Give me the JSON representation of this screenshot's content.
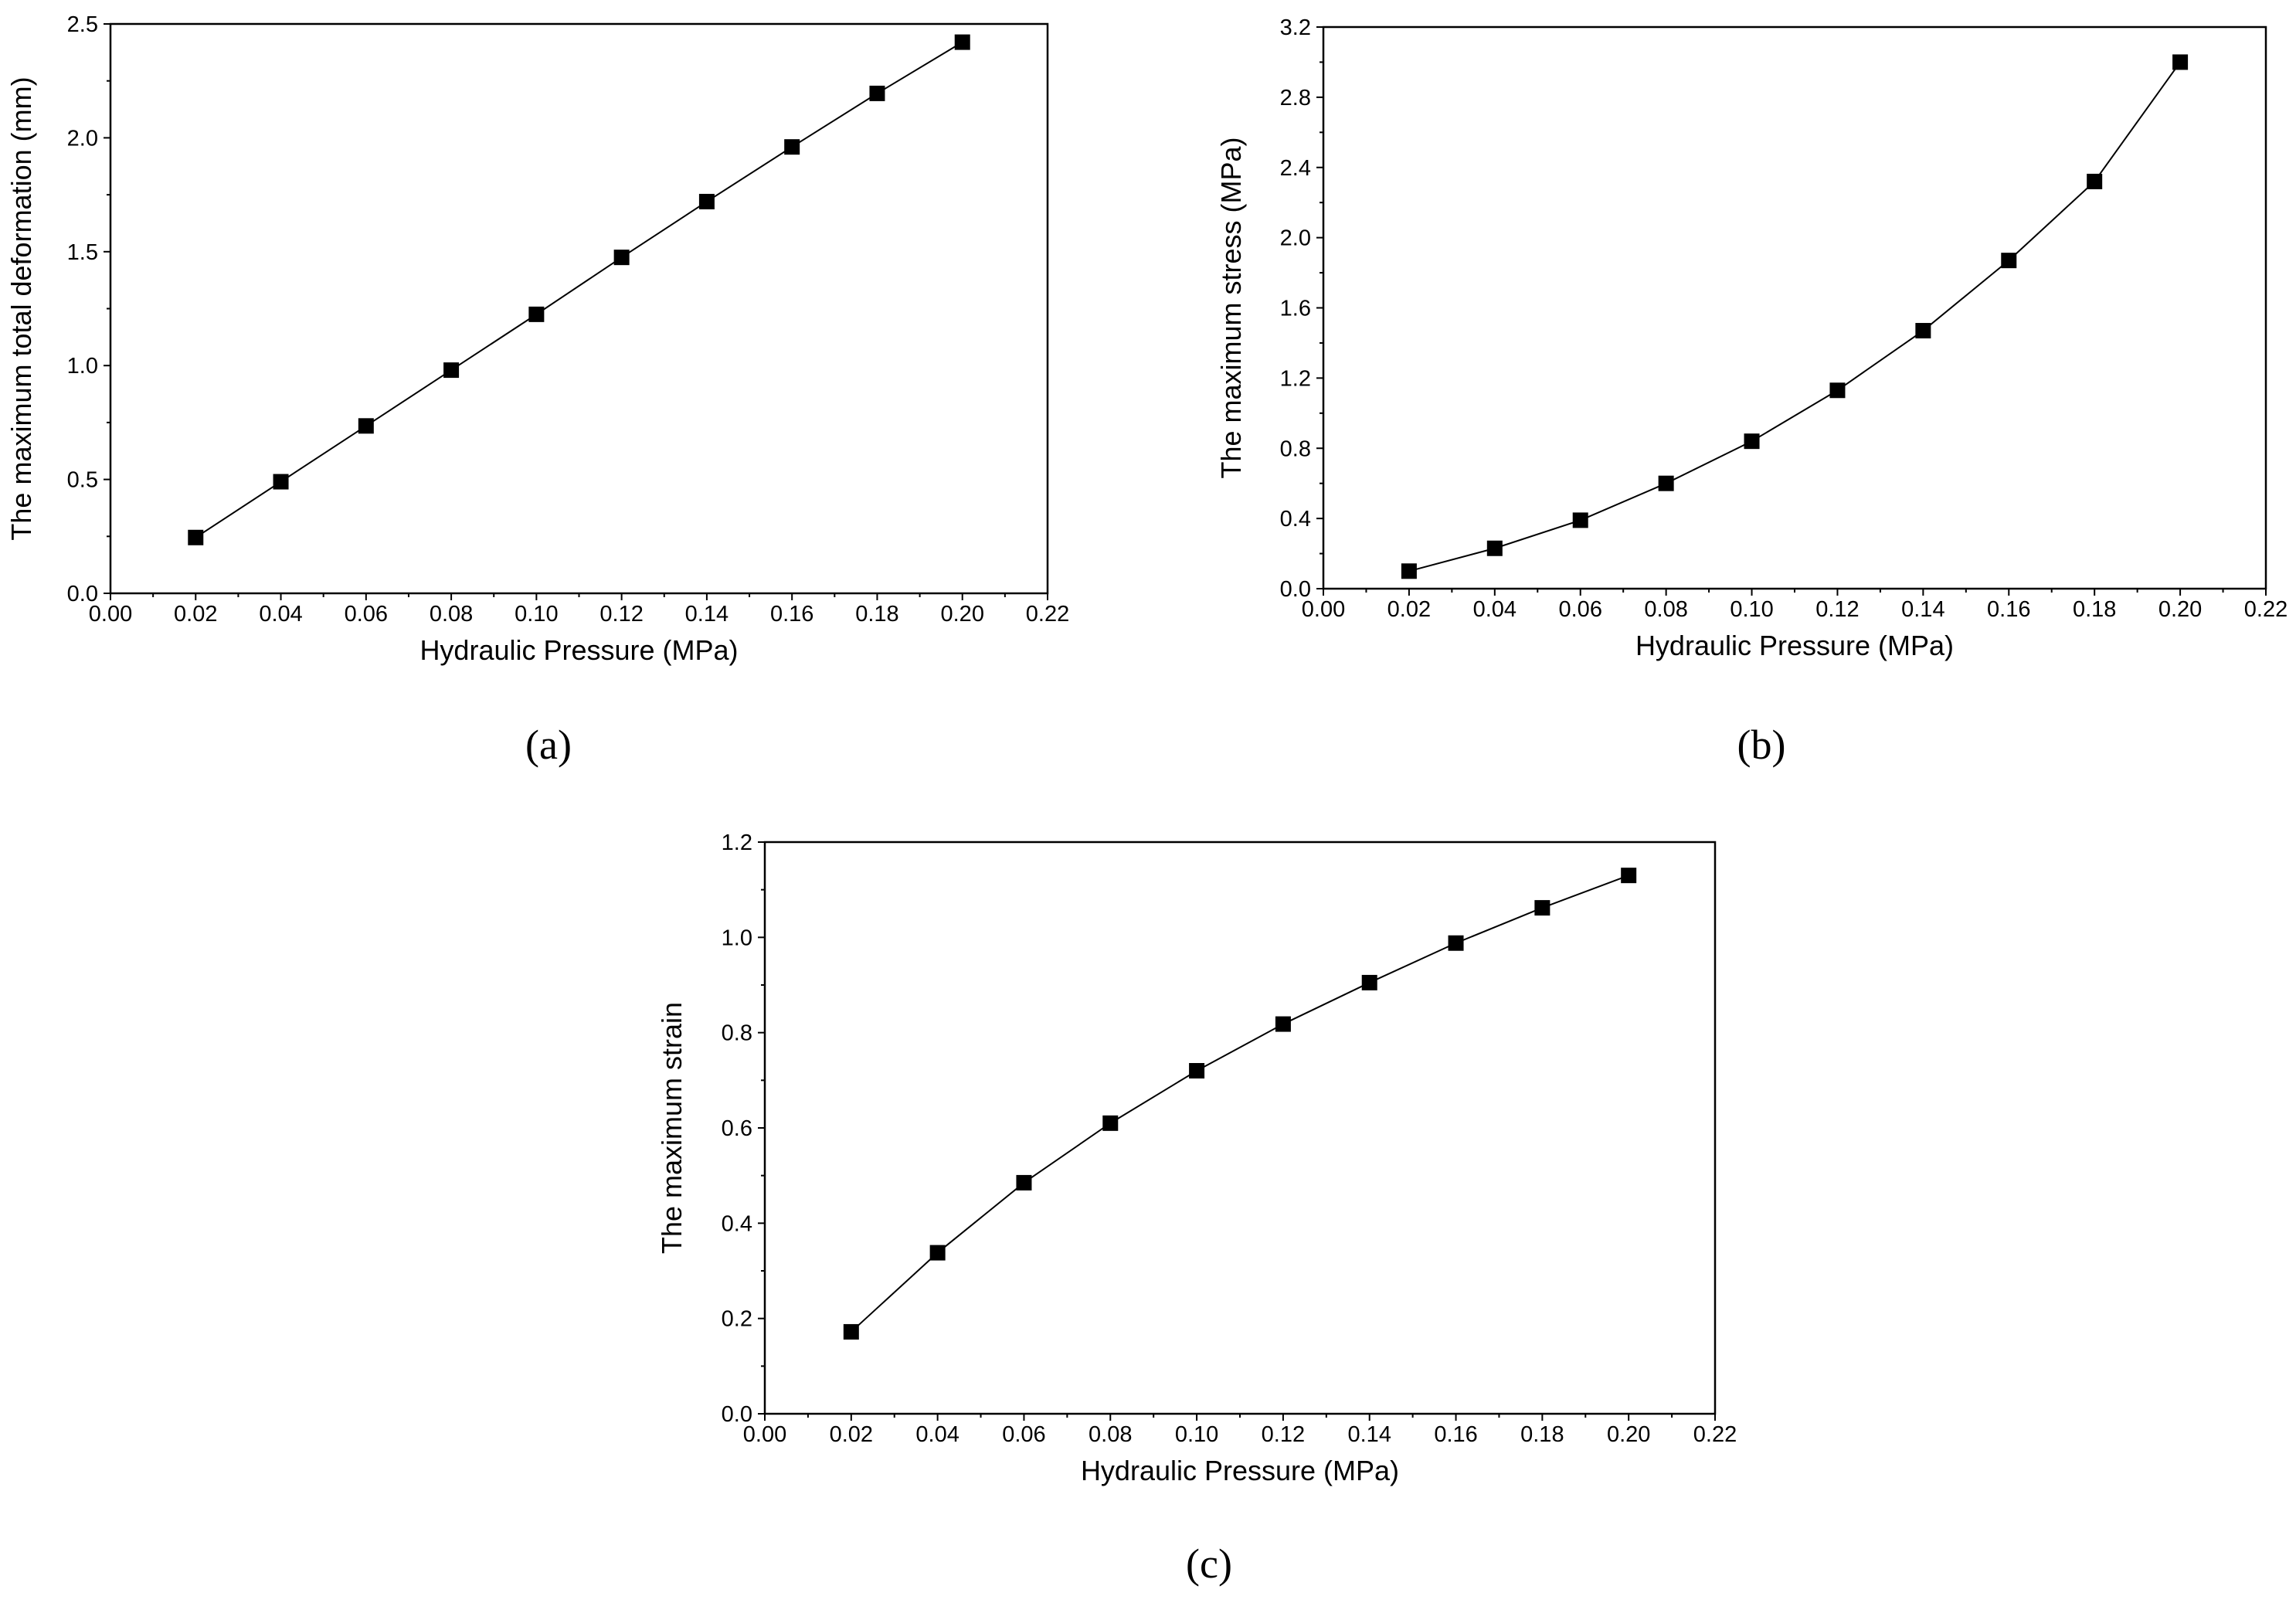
{
  "chart_data": [
    {
      "type": "line",
      "panel_label": "(a)",
      "xlabel": "Hydraulic Pressure (MPa)",
      "ylabel": "The maximum total deformation (mm)",
      "xlim": [
        0.0,
        0.22
      ],
      "ylim": [
        0.0,
        2.5
      ],
      "x_ticks": [
        "0.00",
        "0.02",
        "0.04",
        "0.06",
        "0.08",
        "0.10",
        "0.12",
        "0.14",
        "0.16",
        "0.18",
        "0.20",
        "0.22"
      ],
      "y_ticks": [
        "0.0",
        "0.5",
        "1.0",
        "1.5",
        "2.0",
        "2.5"
      ],
      "grid": false,
      "marker": "square",
      "series": [
        {
          "x": [
            0.02,
            0.04,
            0.06,
            0.08,
            0.1,
            0.12,
            0.14,
            0.16,
            0.18,
            0.2
          ],
          "y": [
            0.245,
            0.49,
            0.735,
            0.98,
            1.225,
            1.475,
            1.72,
            1.96,
            2.195,
            2.42
          ]
        }
      ]
    },
    {
      "type": "line",
      "panel_label": "(b)",
      "xlabel": "Hydraulic Pressure (MPa)",
      "ylabel": "The maximum stress (MPa)",
      "xlim": [
        0.0,
        0.22
      ],
      "ylim": [
        0.0,
        3.2
      ],
      "x_ticks": [
        "0.00",
        "0.02",
        "0.04",
        "0.06",
        "0.08",
        "0.10",
        "0.12",
        "0.14",
        "0.16",
        "0.18",
        "0.20",
        "0.22"
      ],
      "y_ticks": [
        "0.0",
        "0.4",
        "0.8",
        "1.2",
        "1.6",
        "2.0",
        "2.4",
        "2.8",
        "3.2"
      ],
      "grid": false,
      "marker": "square",
      "series": [
        {
          "x": [
            0.02,
            0.04,
            0.06,
            0.08,
            0.1,
            0.12,
            0.14,
            0.16,
            0.18,
            0.2
          ],
          "y": [
            0.1,
            0.23,
            0.39,
            0.6,
            0.84,
            1.13,
            1.47,
            1.87,
            2.32,
            3.0
          ]
        }
      ]
    },
    {
      "type": "line",
      "panel_label": "(c)",
      "xlabel": "Hydraulic Pressure (MPa)",
      "ylabel": "The maximum strain",
      "xlim": [
        0.0,
        0.22
      ],
      "ylim": [
        0.0,
        1.2
      ],
      "x_ticks": [
        "0.00",
        "0.02",
        "0.04",
        "0.06",
        "0.08",
        "0.10",
        "0.12",
        "0.14",
        "0.16",
        "0.18",
        "0.20",
        "0.22"
      ],
      "y_ticks": [
        "0.0",
        "0.2",
        "0.4",
        "0.6",
        "0.8",
        "1.0",
        "1.2"
      ],
      "grid": false,
      "marker": "square",
      "series": [
        {
          "x": [
            0.02,
            0.04,
            0.06,
            0.08,
            0.1,
            0.12,
            0.14,
            0.16,
            0.18,
            0.2
          ],
          "y": [
            0.172,
            0.338,
            0.485,
            0.61,
            0.72,
            0.818,
            0.905,
            0.988,
            1.062,
            1.13
          ]
        }
      ]
    }
  ]
}
